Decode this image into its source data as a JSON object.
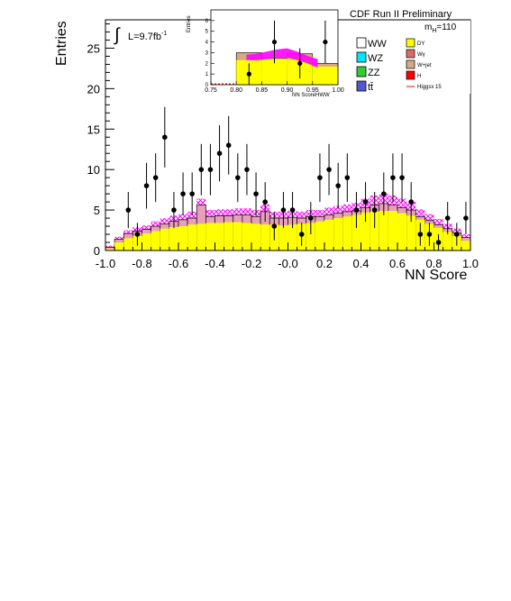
{
  "chart_data": [
    {
      "type": "bar",
      "header": "CDF Run II Preliminary",
      "xlabel": "NN Score",
      "ylabel": "Entries",
      "xlim": [
        -1.0,
        1.0
      ],
      "ylim": [
        0,
        28.5
      ],
      "xticks": [
        "-1.0",
        "-0.8",
        "-0.6",
        "-0.4",
        "-0.2",
        "-0.0",
        "0.2",
        "0.4",
        "0.6",
        "0.8",
        "1.0"
      ],
      "yticks": [
        "0",
        "5",
        "10",
        "15",
        "20",
        "25"
      ],
      "lumi": "L=9.7fb",
      "lumi_exp": "-1",
      "mass_label": "m",
      "mass_sub": "H",
      "mass_value": "=110",
      "legend": [
        {
          "label": "WW",
          "color": "#ffffff"
        },
        {
          "label": "WZ",
          "color": "#00e6ff"
        },
        {
          "label": "ZZ",
          "color": "#33cc33"
        },
        {
          "label": "tt̄",
          "color": "#5555cc"
        },
        {
          "label": "DY",
          "color": "#ffff00"
        },
        {
          "label": "Wγ",
          "color": "#e06868"
        },
        {
          "label": "W+jet",
          "color": "#d8a880"
        },
        {
          "label": "H",
          "color": "#ff0000"
        },
        {
          "label": "Higgsx 15",
          "color": "#ff0000"
        }
      ],
      "bin_edges": [
        -1.0,
        -0.95,
        -0.9,
        -0.85,
        -0.8,
        -0.75,
        -0.7,
        -0.65,
        -0.6,
        -0.55,
        -0.5,
        -0.45,
        -0.4,
        -0.35,
        -0.3,
        -0.25,
        -0.2,
        -0.15,
        -0.1,
        -0.05,
        0.0,
        0.05,
        0.1,
        0.15,
        0.2,
        0.25,
        0.3,
        0.35,
        0.4,
        0.45,
        0.5,
        0.55,
        0.6,
        0.65,
        0.7,
        0.75,
        0.8,
        0.85,
        0.9,
        0.95,
        1.0
      ],
      "dy": [
        0.2,
        1.0,
        1.5,
        1.8,
        2.1,
        2.4,
        2.7,
        2.9,
        3.0,
        3.2,
        3.3,
        3.4,
        3.4,
        3.5,
        3.5,
        3.4,
        3.3,
        3.2,
        3.2,
        3.1,
        3.2,
        3.3,
        3.4,
        3.6,
        3.8,
        4.0,
        4.2,
        4.4,
        4.7,
        4.8,
        4.9,
        4.9,
        4.6,
        4.3,
        3.8,
        3.3,
        2.8,
        2.3,
        1.8,
        1.2
      ],
      "total_bkg": [
        0.4,
        1.4,
        2.1,
        2.4,
        2.6,
        3.0,
        3.3,
        3.6,
        3.8,
        4.0,
        5.6,
        4.2,
        4.3,
        4.3,
        4.4,
        4.4,
        4.2,
        4.8,
        4.0,
        4.0,
        4.1,
        4.0,
        4.2,
        4.2,
        4.4,
        4.6,
        4.8,
        4.9,
        5.3,
        5.6,
        5.8,
        5.6,
        5.3,
        5.0,
        4.2,
        3.7,
        3.2,
        2.7,
        2.2,
        1.6
      ],
      "band_up": [
        0.6,
        1.7,
        2.5,
        2.9,
        3.1,
        3.6,
        4.0,
        4.3,
        4.5,
        4.8,
        6.4,
        5.0,
        5.1,
        5.1,
        5.2,
        5.2,
        5.0,
        5.7,
        4.8,
        4.8,
        4.9,
        4.8,
        5.0,
        5.0,
        5.3,
        5.5,
        5.7,
        5.9,
        6.4,
        6.8,
        7.0,
        6.8,
        6.4,
        6.0,
        5.1,
        4.5,
        3.9,
        3.3,
        2.7,
        2.0
      ],
      "band_down": [
        0.2,
        1.1,
        1.7,
        1.9,
        2.1,
        2.4,
        2.6,
        2.9,
        3.1,
        3.2,
        4.8,
        3.4,
        3.5,
        3.5,
        3.6,
        3.6,
        3.4,
        3.9,
        3.2,
        3.2,
        3.3,
        3.2,
        3.4,
        3.4,
        3.5,
        3.7,
        3.9,
        3.9,
        4.2,
        4.4,
        4.6,
        4.4,
        4.2,
        4.0,
        3.3,
        2.9,
        2.5,
        2.1,
        1.7,
        1.2
      ],
      "data_points": {
        "x": [
          -0.875,
          -0.825,
          -0.775,
          -0.725,
          -0.675,
          -0.625,
          -0.575,
          -0.525,
          -0.475,
          -0.425,
          -0.375,
          -0.325,
          -0.275,
          -0.225,
          -0.175,
          -0.125,
          -0.075,
          -0.025,
          0.025,
          0.075,
          0.125,
          0.175,
          0.225,
          0.275,
          0.325,
          0.375,
          0.425,
          0.475,
          0.525,
          0.575,
          0.625,
          0.675,
          0.725,
          0.775,
          0.825,
          0.875,
          0.925,
          0.975
        ],
        "y": [
          5,
          2,
          8,
          9,
          14,
          5,
          7,
          7,
          10,
          10,
          12,
          13,
          9,
          10,
          7,
          6,
          3,
          5,
          5,
          2,
          4,
          9,
          10,
          8,
          9,
          5,
          6,
          5,
          7,
          9,
          9,
          6,
          2,
          2,
          1,
          4,
          2,
          4
        ]
      }
    },
    {
      "type": "bar",
      "xlabel": "NN ScoreHWW",
      "ylabel": "Entries",
      "xlim": [
        0.75,
        1.0
      ],
      "ylim": [
        0,
        7
      ],
      "xticks": [
        "0.75",
        "0.80",
        "0.85",
        "0.90",
        "0.95",
        "1.00"
      ],
      "yticks": [
        "0",
        "1",
        "2",
        "3",
        "4",
        "5",
        "6"
      ],
      "bin_edges": [
        0.8,
        0.85,
        0.9,
        0.95,
        1.0
      ],
      "dy": [
        2.3,
        2.4,
        2.6,
        1.7
      ],
      "total_bkg": [
        3.0,
        2.5,
        2.9,
        2.0
      ],
      "higgs_band": {
        "x": [
          0.82,
          0.84,
          0.86,
          0.88,
          0.9,
          0.92,
          0.94,
          0.96
        ],
        "up": [
          2.8,
          2.9,
          3.1,
          3.3,
          3.4,
          3.1,
          2.7,
          2.4
        ],
        "down": [
          2.3,
          2.3,
          2.4,
          2.5,
          2.5,
          2.3,
          2.0,
          1.6
        ]
      },
      "data_points": {
        "x": [
          0.825,
          0.875,
          0.925,
          0.975
        ],
        "y": [
          1,
          4,
          2,
          4
        ]
      }
    }
  ]
}
